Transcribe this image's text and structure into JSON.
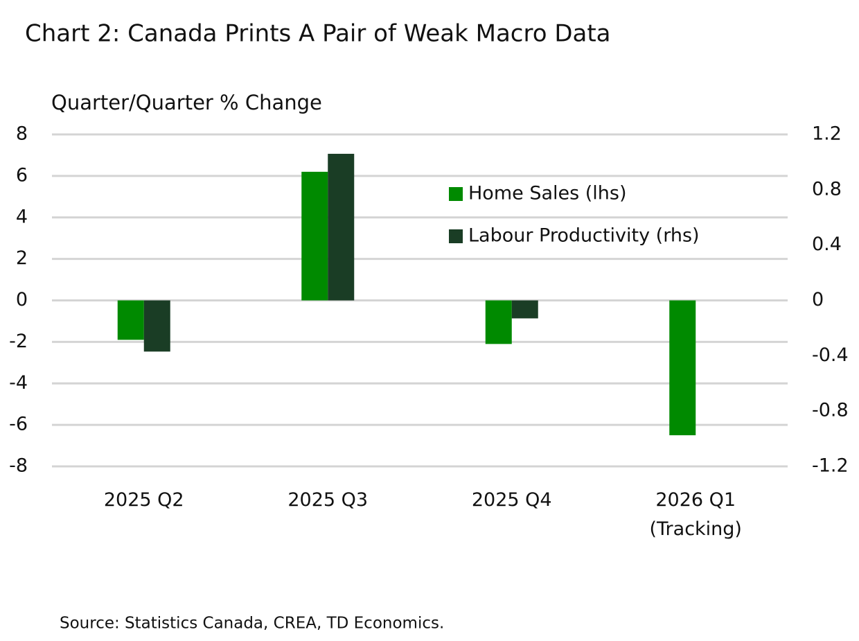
{
  "chart_data": {
    "type": "bar",
    "title": "Chart 2: Canada Prints A Pair of Weak Macro Data",
    "ylabel": "Quarter/Quarter % Change",
    "source": "Source: Statistics Canada, CREA, TD Economics.",
    "categories": [
      "2025 Q2",
      "2025 Q3",
      "2025 Q4",
      "2026 Q1\n(Tracking)"
    ],
    "series": [
      {
        "name": "Home Sales (lhs)",
        "color": "#008a00",
        "values": [
          -1.9,
          6.2,
          -2.1,
          -6.5
        ]
      },
      {
        "name": "Labour Productivity (rhs)",
        "color": "#1a3d25",
        "values": [
          -0.37,
          1.06,
          -0.13,
          null
        ],
        "axis": "y2"
      }
    ],
    "ylim": [
      -8,
      8
    ],
    "yticks": [
      -8,
      -6,
      -4,
      -2,
      0,
      2,
      4,
      6,
      8
    ],
    "y2lim": [
      -1.2,
      1.2
    ],
    "y2ticks": [
      -1.2,
      -0.8,
      -0.4,
      0,
      0.4,
      0.8,
      1.2
    ],
    "grid": true,
    "legend": "upper right"
  }
}
